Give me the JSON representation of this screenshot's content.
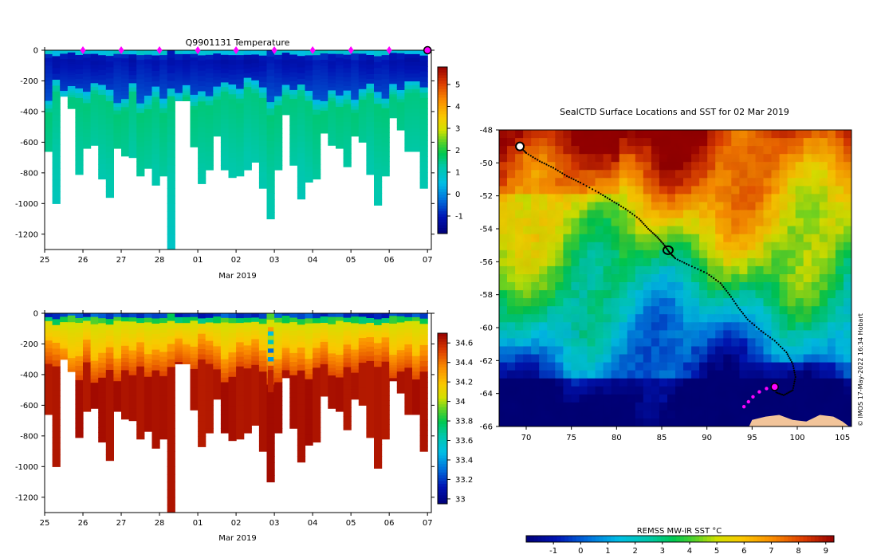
{
  "chart_data": [
    {
      "type": "heatmap",
      "title": "Q9901131  Temperature",
      "xlabel": "Mar 2019",
      "ylabel": "",
      "x_tick_labels": [
        "25",
        "26",
        "27",
        "28",
        "01",
        "02",
        "03",
        "04",
        "05",
        "06",
        "07"
      ],
      "x_tick_days": [
        25,
        26,
        27,
        28,
        29,
        30,
        31,
        32,
        33,
        34,
        35
      ],
      "xlim": [
        25,
        35.1
      ],
      "y_tick_labels": [
        "0",
        "-200",
        "-400",
        "-600",
        "-800",
        "-1000",
        "-1200"
      ],
      "y_tick_values": [
        0,
        -200,
        -400,
        -600,
        -800,
        -1000,
        -1200
      ],
      "ylim": [
        -1300,
        0
      ],
      "colorbar": {
        "tick_labels": [
          "-1",
          "0",
          "1",
          "2",
          "3",
          "4",
          "5"
        ],
        "tick_values": [
          -1,
          0,
          1,
          2,
          3,
          4,
          5
        ],
        "range": [
          -1.8,
          5.8
        ]
      },
      "surface_markers_days": [
        26,
        27,
        28,
        29,
        30,
        31,
        32,
        33,
        34
      ],
      "last_profile_day": 35,
      "profiles": [
        {
          "day": 25.1,
          "depth": 660
        },
        {
          "day": 25.3,
          "depth": 1000
        },
        {
          "day": 25.5,
          "depth": 300
        },
        {
          "day": 25.7,
          "depth": 380
        },
        {
          "day": 25.9,
          "depth": 810
        },
        {
          "day": 26.1,
          "depth": 640
        },
        {
          "day": 26.3,
          "depth": 620
        },
        {
          "day": 26.5,
          "depth": 840
        },
        {
          "day": 26.7,
          "depth": 960
        },
        {
          "day": 26.9,
          "depth": 640
        },
        {
          "day": 27.1,
          "depth": 690
        },
        {
          "day": 27.3,
          "depth": 700
        },
        {
          "day": 27.5,
          "depth": 820
        },
        {
          "day": 27.7,
          "depth": 770
        },
        {
          "day": 27.9,
          "depth": 880
        },
        {
          "day": 28.1,
          "depth": 820
        },
        {
          "day": 28.3,
          "depth": 1300
        },
        {
          "day": 28.5,
          "depth": 330
        },
        {
          "day": 28.7,
          "depth": 330
        },
        {
          "day": 28.9,
          "depth": 630
        },
        {
          "day": 29.1,
          "depth": 870
        },
        {
          "day": 29.3,
          "depth": 780
        },
        {
          "day": 29.5,
          "depth": 560
        },
        {
          "day": 29.7,
          "depth": 780
        },
        {
          "day": 29.9,
          "depth": 830
        },
        {
          "day": 30.1,
          "depth": 820
        },
        {
          "day": 30.3,
          "depth": 780
        },
        {
          "day": 30.5,
          "depth": 730
        },
        {
          "day": 30.7,
          "depth": 900
        },
        {
          "day": 30.9,
          "depth": 1100
        },
        {
          "day": 31.1,
          "depth": 780
        },
        {
          "day": 31.3,
          "depth": 420
        },
        {
          "day": 31.5,
          "depth": 750
        },
        {
          "day": 31.7,
          "depth": 970
        },
        {
          "day": 31.9,
          "depth": 860
        },
        {
          "day": 32.1,
          "depth": 840
        },
        {
          "day": 32.3,
          "depth": 540
        },
        {
          "day": 32.5,
          "depth": 620
        },
        {
          "day": 32.7,
          "depth": 640
        },
        {
          "day": 32.9,
          "depth": 760
        },
        {
          "day": 33.1,
          "depth": 560
        },
        {
          "day": 33.3,
          "depth": 600
        },
        {
          "day": 33.5,
          "depth": 810
        },
        {
          "day": 33.7,
          "depth": 1010
        },
        {
          "day": 33.9,
          "depth": 820
        },
        {
          "day": 34.1,
          "depth": 440
        },
        {
          "day": 34.3,
          "depth": 520
        },
        {
          "day": 34.5,
          "depth": 660
        },
        {
          "day": 34.7,
          "depth": 660
        },
        {
          "day": 34.9,
          "depth": 900
        }
      ]
    },
    {
      "type": "heatmap",
      "title": "",
      "xlabel": "Mar 2019",
      "ylabel": "",
      "x_tick_labels": [
        "25",
        "26",
        "27",
        "28",
        "01",
        "02",
        "03",
        "04",
        "05",
        "06",
        "07"
      ],
      "x_tick_days": [
        25,
        26,
        27,
        28,
        29,
        30,
        31,
        32,
        33,
        34,
        35
      ],
      "xlim": [
        25,
        35.1
      ],
      "y_tick_labels": [
        "0",
        "-200",
        "-400",
        "-600",
        "-800",
        "-1000",
        "-1200"
      ],
      "y_tick_values": [
        0,
        -200,
        -400,
        -600,
        -800,
        -1000,
        -1200
      ],
      "ylim": [
        -1300,
        0
      ],
      "colorbar": {
        "tick_labels": [
          "33",
          "33.2",
          "33.4",
          "33.6",
          "33.8",
          "34",
          "34.2",
          "34.4",
          "34.6"
        ],
        "tick_values": [
          33,
          33.2,
          33.4,
          33.6,
          33.8,
          34,
          34.2,
          34.4,
          34.6
        ],
        "range": [
          32.95,
          34.7
        ]
      },
      "profiles_same_as_above": true
    },
    {
      "type": "heatmap",
      "title": "SealCTD Surface Locations and SST for 02 Mar 2019",
      "xlabel": "",
      "ylabel": "",
      "x_tick_labels": [
        "70",
        "75",
        "80",
        "85",
        "90",
        "95",
        "100",
        "105"
      ],
      "x_tick_values": [
        70,
        75,
        80,
        85,
        90,
        95,
        100,
        105
      ],
      "xlim": [
        67,
        106
      ],
      "y_tick_labels": [
        "-48",
        "-50",
        "-52",
        "-54",
        "-56",
        "-58",
        "-60",
        "-62",
        "-64",
        "-66"
      ],
      "y_tick_values": [
        -48,
        -50,
        -52,
        -54,
        -56,
        -58,
        -60,
        -62,
        -64,
        -66
      ],
      "ylim": [
        -66,
        -48
      ],
      "colorbar": {
        "label": "REMSS MW-IR SST °C",
        "tick_labels": [
          "-1",
          "0",
          "1",
          "2",
          "3",
          "4",
          "5",
          "6",
          "7",
          "8",
          "9"
        ],
        "tick_values": [
          -1,
          0,
          1,
          2,
          3,
          4,
          5,
          6,
          7,
          8,
          9
        ],
        "range": [
          -2,
          9.3
        ]
      },
      "track": [
        [
          69.3,
          -49.0
        ],
        [
          70.0,
          -49.4
        ],
        [
          71.5,
          -49.9
        ],
        [
          73.0,
          -50.3
        ],
        [
          74.5,
          -50.8
        ],
        [
          76.0,
          -51.2
        ],
        [
          78.0,
          -51.8
        ],
        [
          79.5,
          -52.3
        ],
        [
          81.0,
          -52.8
        ],
        [
          82.5,
          -53.4
        ],
        [
          83.5,
          -54.0
        ],
        [
          84.5,
          -54.5
        ],
        [
          85.3,
          -55.0
        ],
        [
          85.8,
          -55.4
        ],
        [
          86.5,
          -55.8
        ],
        [
          88.0,
          -56.2
        ],
        [
          90.0,
          -56.7
        ],
        [
          91.5,
          -57.3
        ],
        [
          92.5,
          -58.0
        ],
        [
          93.5,
          -58.8
        ],
        [
          94.5,
          -59.5
        ],
        [
          96.0,
          -60.2
        ],
        [
          97.5,
          -60.8
        ],
        [
          98.8,
          -61.5
        ],
        [
          99.5,
          -62.2
        ],
        [
          99.8,
          -63.0
        ],
        [
          99.5,
          -63.8
        ],
        [
          98.5,
          -64.1
        ],
        [
          97.5,
          -63.9
        ]
      ],
      "recent_positions": [
        [
          94.1,
          -64.8
        ],
        [
          94.6,
          -64.5
        ],
        [
          95.1,
          -64.2
        ],
        [
          95.8,
          -63.9
        ],
        [
          96.6,
          -63.7
        ]
      ],
      "current_position": [
        97.5,
        -63.6
      ],
      "credit": "© IMOS 17-May-2022 16:34 Hobart"
    }
  ],
  "colors": {
    "marker": "#ff00ff",
    "land": "#f2c49a",
    "track": "#000000"
  }
}
